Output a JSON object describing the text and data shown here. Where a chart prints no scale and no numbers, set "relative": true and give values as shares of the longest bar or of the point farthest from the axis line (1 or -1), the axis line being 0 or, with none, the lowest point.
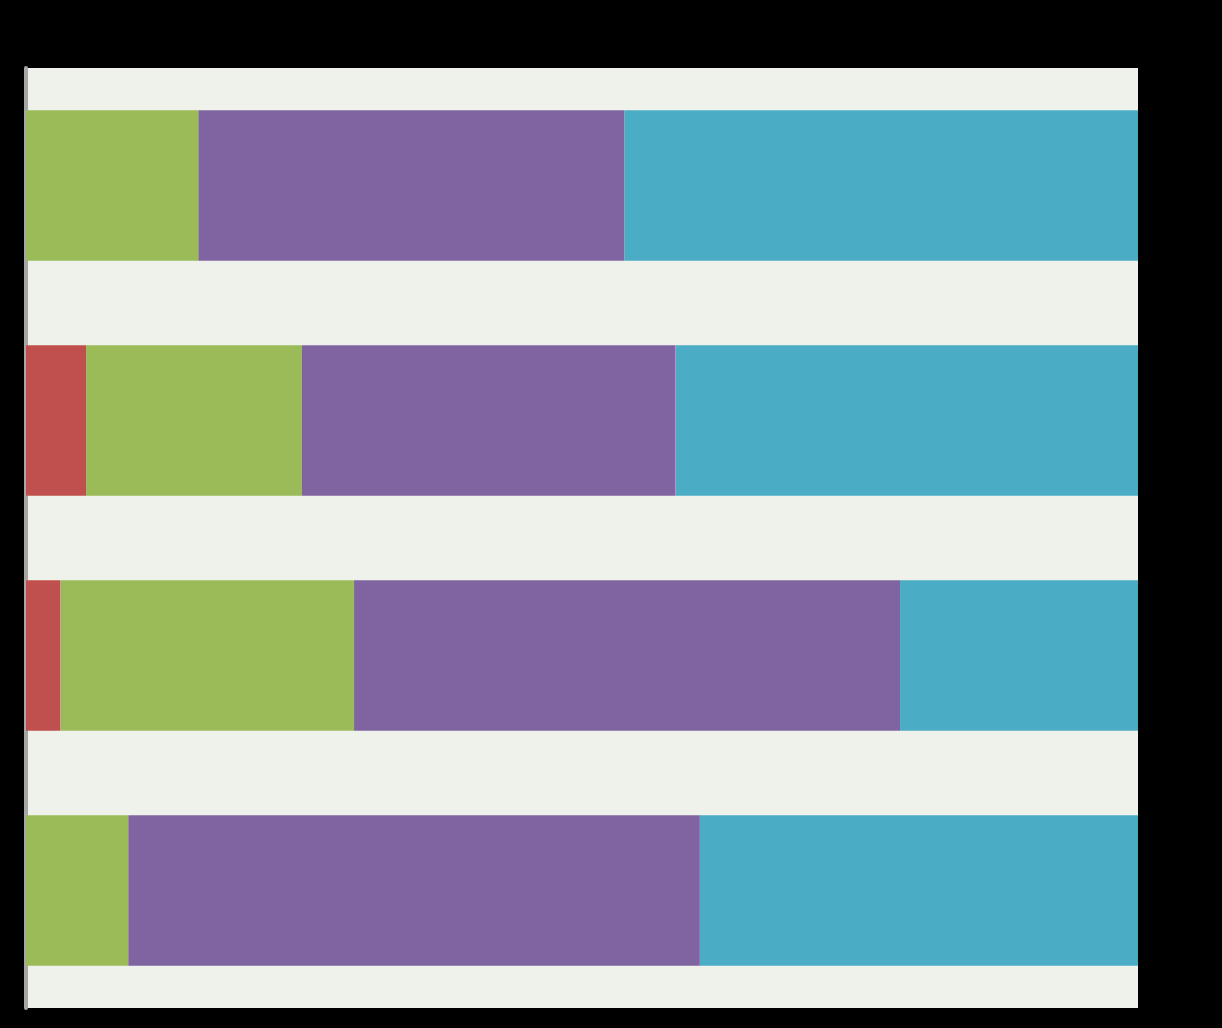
{
  "chart_data": {
    "type": "bar",
    "orientation": "horizontal",
    "stacked": true,
    "relative": true,
    "categories": [
      null,
      null,
      null,
      null
    ],
    "series": [
      {
        "color": "#c0504d",
        "values": [
          null,
          0.054,
          0.031,
          null
        ]
      },
      {
        "color": "#9bbb59",
        "values": [
          0.155,
          0.194,
          0.264,
          0.092
        ]
      },
      {
        "color": "#8064a2",
        "values": [
          0.383,
          0.336,
          0.491,
          0.514
        ]
      },
      {
        "color": "#4bacc6",
        "values": [
          0.462,
          0.416,
          0.214,
          0.394
        ]
      }
    ]
  }
}
